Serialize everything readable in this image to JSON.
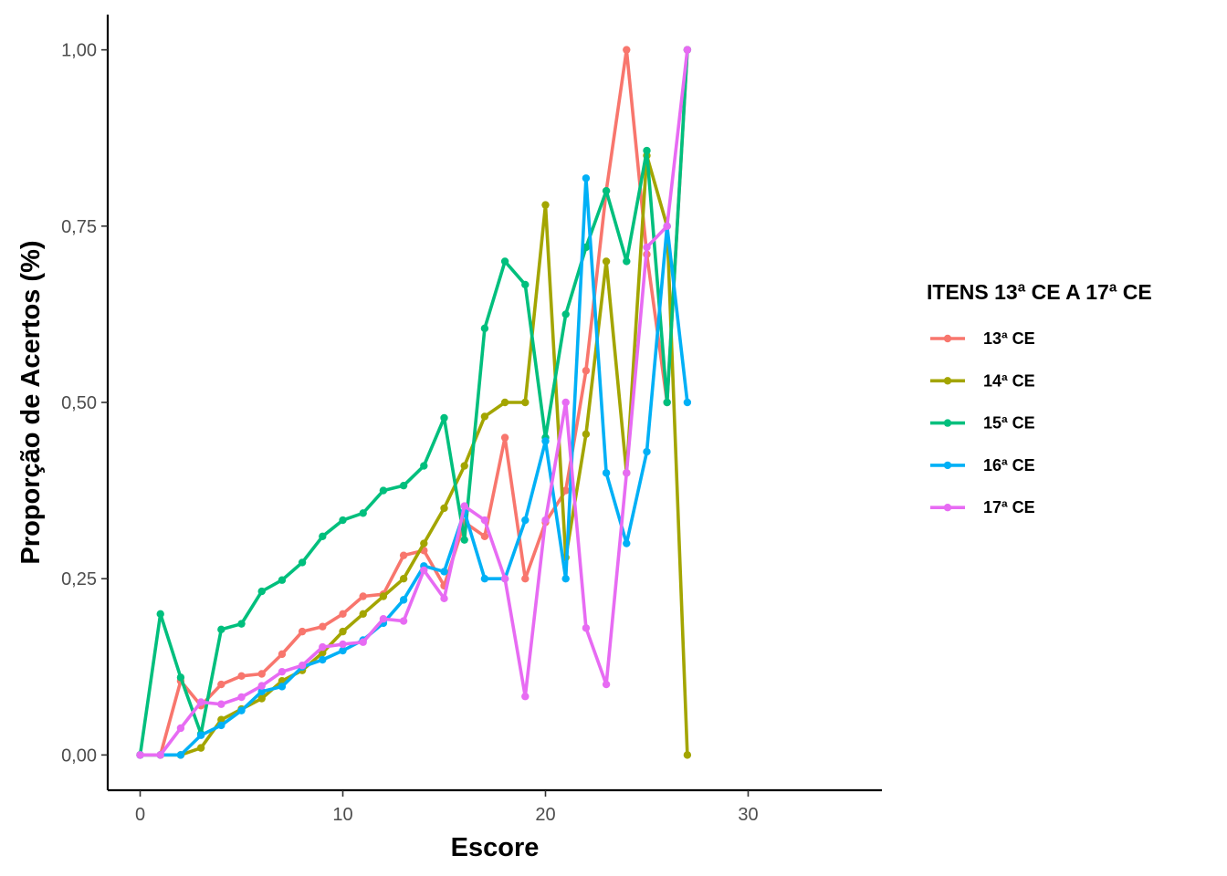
{
  "chart_data": {
    "type": "line",
    "title": "",
    "xlabel": "Escore",
    "ylabel": "Proporção de Acertos (%)",
    "xlim": [
      -1.6,
      36.6
    ],
    "ylim": [
      -0.05,
      1.05
    ],
    "xticks": [
      0,
      10,
      20,
      30
    ],
    "xtick_labels": [
      "0",
      "10",
      "20",
      "30"
    ],
    "yticks": [
      0,
      0.25,
      0.5,
      0.75,
      1
    ],
    "ytick_labels": [
      "0,00",
      "0,25",
      "0,50",
      "0,75",
      "1,00"
    ],
    "grid": false,
    "legend": {
      "title": "ITENS 13ª CE A 17ª CE",
      "position": "right"
    },
    "x": [
      0,
      1,
      2,
      3,
      4,
      5,
      6,
      7,
      8,
      9,
      10,
      11,
      12,
      13,
      14,
      15,
      16,
      17,
      18,
      19,
      20,
      21,
      22,
      23,
      24,
      25,
      26,
      27
    ],
    "series": [
      {
        "name": "13ª CE",
        "color": "#F8766D",
        "values": [
          0,
          0,
          0.105,
          0.07,
          0.1,
          0.112,
          0.115,
          0.143,
          0.175,
          0.182,
          0.2,
          0.225,
          0.228,
          0.283,
          0.29,
          0.24,
          0.33,
          0.31,
          0.45,
          0.25,
          0.33,
          0.375,
          0.545,
          0.8,
          1.0,
          0.71,
          0.5,
          1.0
        ]
      },
      {
        "name": "14ª CE",
        "color": "#A3A500",
        "values": [
          0,
          0,
          0,
          0.01,
          0.05,
          0.065,
          0.08,
          0.105,
          0.12,
          0.145,
          0.175,
          0.2,
          0.225,
          0.25,
          0.3,
          0.35,
          0.41,
          0.48,
          0.5,
          0.5,
          0.78,
          0.28,
          0.455,
          0.7,
          0.4,
          0.85,
          0.75,
          0
        ]
      },
      {
        "name": "15ª CE",
        "color": "#00BF7D",
        "values": [
          0,
          0.2,
          0.11,
          0.03,
          0.178,
          0.186,
          0.232,
          0.248,
          0.273,
          0.31,
          0.333,
          0.343,
          0.375,
          0.382,
          0.41,
          0.478,
          0.305,
          0.605,
          0.7,
          0.667,
          0.45,
          0.625,
          0.72,
          0.8,
          0.7,
          0.857,
          0.5,
          1.0
        ]
      },
      {
        "name": "16ª CE",
        "color": "#00B0F6",
        "values": [
          0,
          0,
          0,
          0.028,
          0.042,
          0.063,
          0.09,
          0.097,
          0.125,
          0.135,
          0.148,
          0.163,
          0.187,
          0.22,
          0.268,
          0.26,
          0.345,
          0.25,
          0.25,
          0.333,
          0.445,
          0.25,
          0.818,
          0.4,
          0.3,
          0.43,
          0.75,
          0.5
        ]
      },
      {
        "name": "17ª CE",
        "color": "#E76BF3",
        "values": [
          0,
          0,
          0.038,
          0.075,
          0.072,
          0.082,
          0.098,
          0.118,
          0.127,
          0.153,
          0.157,
          0.16,
          0.193,
          0.19,
          0.262,
          0.222,
          0.353,
          0.333,
          0.25,
          0.083,
          0.333,
          0.5,
          0.18,
          0.1,
          0.4,
          0.72,
          0.75,
          1.0
        ]
      }
    ]
  }
}
